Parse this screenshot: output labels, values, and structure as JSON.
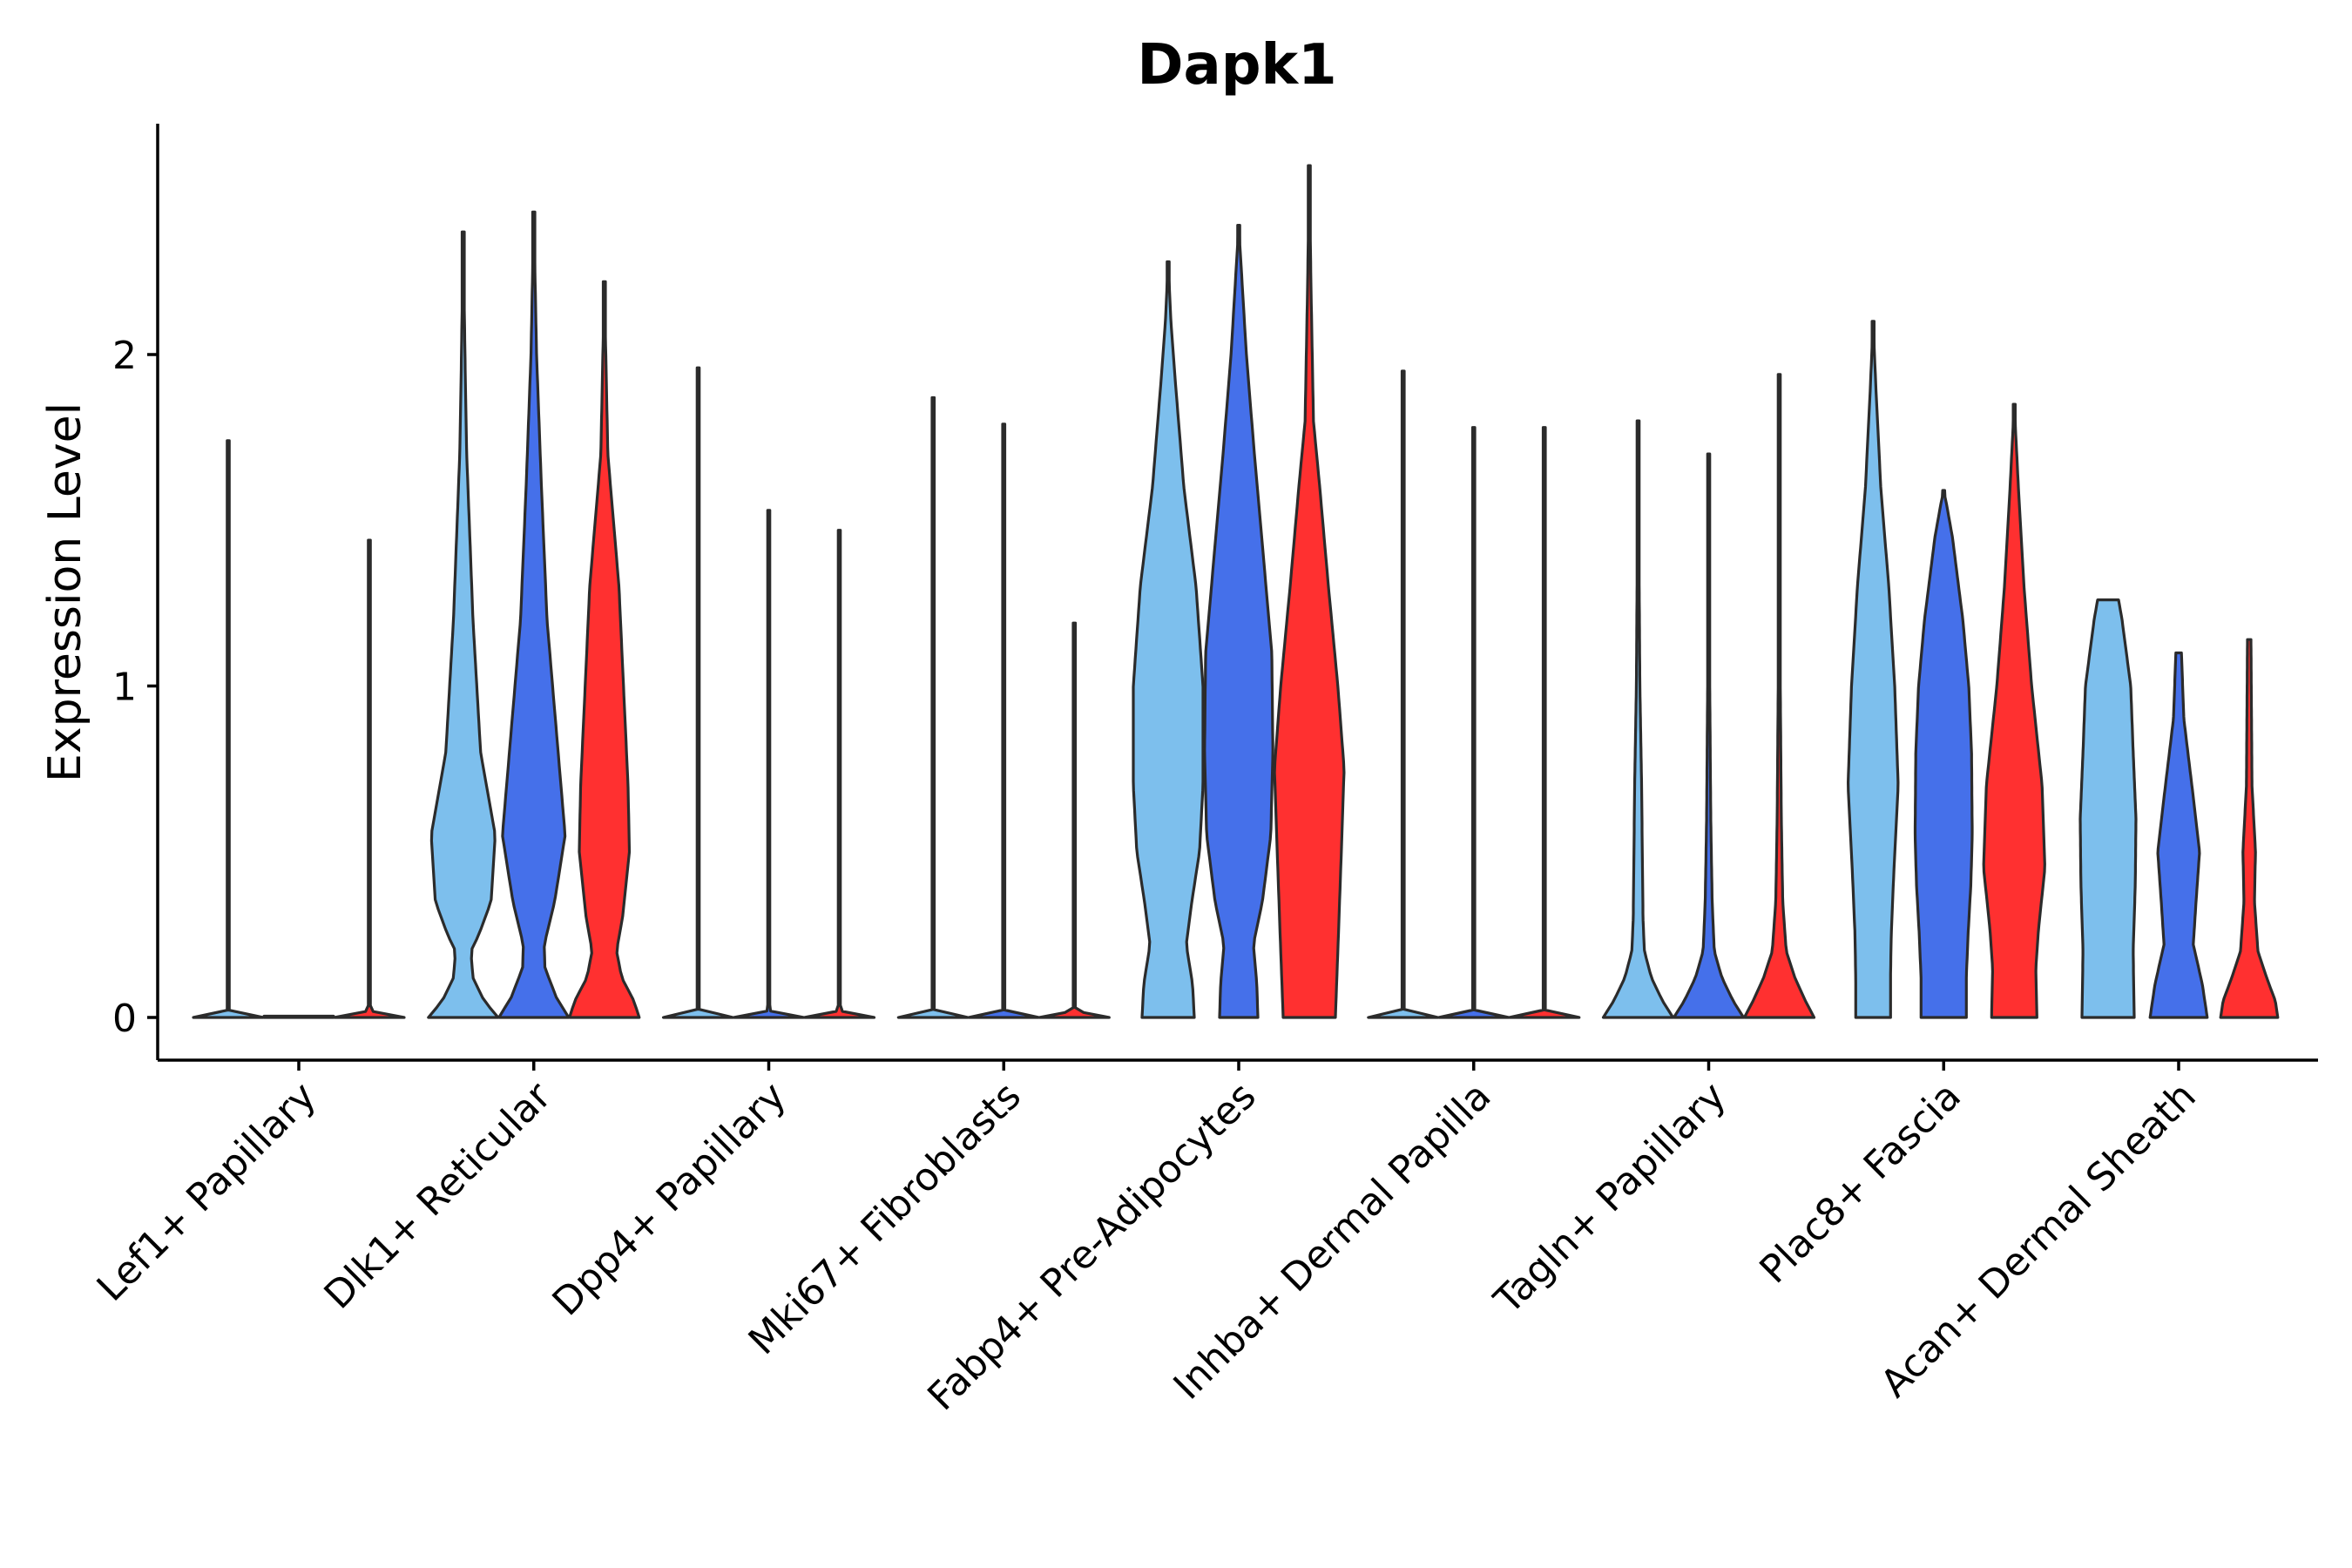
{
  "chart_data": {
    "type": "violin",
    "title": "Dapk1",
    "xlabel": "",
    "ylabel": "Expression Level",
    "ylim": [
      -0.13,
      2.7
    ],
    "yticks": [
      0,
      1,
      2
    ],
    "grid": false,
    "legend": "none",
    "group_colors": [
      "#7dbfed",
      "#4570ea",
      "#ff3030"
    ],
    "categories": [
      "Lef1+ Papillary",
      "Dlk1+ Reticular",
      "Dpp4+ Papillary",
      "Mki67+ Fibroblasts",
      "Fabp4+ Pre-Adipocytes",
      "Inhba+ Dermal Papilla",
      "Tagln+ Papillary",
      "Plac8+ Fascia",
      "Acan+ Dermal Sheath"
    ],
    "violins": [
      [
        {
          "max": 1.74,
          "profile": [
            [
              0,
              1.0
            ],
            [
              0.02,
              0.01
            ],
            [
              1,
              0
            ]
          ]
        },
        {
          "max": 0.0,
          "profile": [
            [
              0,
              1.0
            ],
            [
              1,
              0
            ]
          ]
        },
        {
          "max": 1.44,
          "profile": [
            [
              0,
              1.0
            ],
            [
              0.02,
              0.01
            ],
            [
              1,
              0
            ]
          ]
        }
      ],
      [
        {
          "max": 2.37,
          "profile": [
            [
              0,
              1.0
            ],
            [
              0.05,
              0.6
            ],
            [
              0.12,
              0.28
            ],
            [
              0.2,
              0.22
            ],
            [
              0.25,
              0.45
            ],
            [
              0.35,
              0.8
            ],
            [
              0.55,
              0.92
            ],
            [
              0.8,
              0.5
            ],
            [
              1.2,
              0.28
            ],
            [
              1.7,
              0.1
            ],
            [
              2.0,
              0.05
            ],
            [
              2.37,
              0
            ]
          ]
        },
        {
          "max": 2.43,
          "profile": [
            [
              0,
              1.0
            ],
            [
              0.06,
              0.65
            ],
            [
              0.15,
              0.32
            ],
            [
              0.22,
              0.3
            ],
            [
              0.35,
              0.6
            ],
            [
              0.55,
              0.9
            ],
            [
              0.8,
              0.7
            ],
            [
              1.2,
              0.38
            ],
            [
              1.6,
              0.22
            ],
            [
              2.0,
              0.08
            ],
            [
              2.43,
              0
            ]
          ]
        },
        {
          "max": 2.22,
          "profile": [
            [
              0,
              1.0
            ],
            [
              0.05,
              0.85
            ],
            [
              0.12,
              0.5
            ],
            [
              0.2,
              0.35
            ],
            [
              0.3,
              0.52
            ],
            [
              0.5,
              0.72
            ],
            [
              0.7,
              0.68
            ],
            [
              1.0,
              0.55
            ],
            [
              1.3,
              0.42
            ],
            [
              1.7,
              0.1
            ],
            [
              2.22,
              0
            ]
          ]
        }
      ],
      [
        {
          "max": 1.96,
          "profile": [
            [
              0,
              1.0
            ],
            [
              0.02,
              0.01
            ],
            [
              1,
              0
            ]
          ]
        },
        {
          "max": 1.53,
          "profile": [
            [
              0,
              1.0
            ],
            [
              0.02,
              0.01
            ],
            [
              1,
              0
            ]
          ]
        },
        {
          "max": 1.47,
          "profile": [
            [
              0,
              1.0
            ],
            [
              0.02,
              0.01
            ],
            [
              1,
              0
            ]
          ]
        }
      ],
      [
        {
          "max": 1.87,
          "profile": [
            [
              0,
              1.0
            ],
            [
              0.02,
              0.01
            ],
            [
              1,
              0
            ]
          ]
        },
        {
          "max": 1.79,
          "profile": [
            [
              0,
              1.0
            ],
            [
              0.02,
              0.01
            ],
            [
              1,
              0
            ]
          ]
        },
        {
          "max": 1.19,
          "profile": [
            [
              0,
              1.0
            ],
            [
              0.02,
              0.01
            ],
            [
              1,
              0
            ]
          ]
        }
      ],
      [
        {
          "max": 2.28,
          "profile": [
            [
              0,
              0.75
            ],
            [
              0.1,
              0.7
            ],
            [
              0.22,
              0.52
            ],
            [
              0.35,
              0.68
            ],
            [
              0.5,
              0.9
            ],
            [
              0.7,
              1.0
            ],
            [
              1.0,
              1.0
            ],
            [
              1.3,
              0.8
            ],
            [
              1.6,
              0.45
            ],
            [
              1.9,
              0.22
            ],
            [
              2.1,
              0.08
            ],
            [
              2.28,
              0
            ]
          ]
        },
        {
          "max": 2.39,
          "profile": [
            [
              0,
              0.55
            ],
            [
              0.1,
              0.52
            ],
            [
              0.22,
              0.42
            ],
            [
              0.35,
              0.68
            ],
            [
              0.55,
              0.92
            ],
            [
              0.8,
              0.98
            ],
            [
              1.1,
              0.95
            ],
            [
              1.4,
              0.7
            ],
            [
              1.7,
              0.45
            ],
            [
              2.0,
              0.22
            ],
            [
              2.39,
              0
            ]
          ]
        },
        {
          "max": 2.57,
          "profile": [
            [
              0,
              0.75
            ],
            [
              0.2,
              0.82
            ],
            [
              0.5,
              0.92
            ],
            [
              0.75,
              1.0
            ],
            [
              1.0,
              0.82
            ],
            [
              1.3,
              0.55
            ],
            [
              1.6,
              0.3
            ],
            [
              1.8,
              0.12
            ],
            [
              2.2,
              0.05
            ],
            [
              2.57,
              0
            ]
          ]
        }
      ],
      [
        {
          "max": 1.95,
          "profile": [
            [
              0,
              1.0
            ],
            [
              0.02,
              0.01
            ],
            [
              1,
              0
            ]
          ]
        },
        {
          "max": 1.78,
          "profile": [
            [
              0,
              1.0
            ],
            [
              0.02,
              0.01
            ],
            [
              1,
              0
            ]
          ]
        },
        {
          "max": 1.78,
          "profile": [
            [
              0,
              1.0
            ],
            [
              0.02,
              0.01
            ],
            [
              1,
              0
            ]
          ]
        }
      ],
      [
        {
          "max": 1.8,
          "profile": [
            [
              0,
              1.0
            ],
            [
              0.05,
              0.7
            ],
            [
              0.12,
              0.38
            ],
            [
              0.2,
              0.18
            ],
            [
              0.3,
              0.14
            ],
            [
              0.5,
              0.12
            ],
            [
              0.7,
              0.1
            ],
            [
              1.0,
              0.05
            ],
            [
              1.8,
              0
            ]
          ]
        },
        {
          "max": 1.7,
          "profile": [
            [
              0,
              1.0
            ],
            [
              0.05,
              0.7
            ],
            [
              0.12,
              0.38
            ],
            [
              0.2,
              0.16
            ],
            [
              0.35,
              0.1
            ],
            [
              0.6,
              0.06
            ],
            [
              1.0,
              0.03
            ],
            [
              1.7,
              0
            ]
          ]
        },
        {
          "max": 1.94,
          "profile": [
            [
              0,
              1.0
            ],
            [
              0.05,
              0.75
            ],
            [
              0.12,
              0.45
            ],
            [
              0.2,
              0.2
            ],
            [
              0.35,
              0.1
            ],
            [
              0.6,
              0.06
            ],
            [
              1.0,
              0.03
            ],
            [
              1.94,
              0
            ]
          ]
        }
      ],
      [
        {
          "max": 2.1,
          "profile": [
            [
              0,
              0.5
            ],
            [
              0.12,
              0.5
            ],
            [
              0.25,
              0.52
            ],
            [
              0.45,
              0.6
            ],
            [
              0.7,
              0.72
            ],
            [
              1.0,
              0.62
            ],
            [
              1.3,
              0.45
            ],
            [
              1.6,
              0.22
            ],
            [
              1.9,
              0.08
            ],
            [
              2.1,
              0
            ]
          ]
        },
        {
          "max": 1.59,
          "profile": [
            [
              0,
              0.65
            ],
            [
              0.12,
              0.65
            ],
            [
              0.25,
              0.7
            ],
            [
              0.4,
              0.78
            ],
            [
              0.55,
              0.82
            ],
            [
              0.8,
              0.8
            ],
            [
              1.0,
              0.72
            ],
            [
              1.2,
              0.55
            ],
            [
              1.45,
              0.25
            ],
            [
              1.55,
              0.08
            ],
            [
              1.59,
              0
            ]
          ]
        },
        {
          "max": 1.85,
          "profile": [
            [
              0,
              0.65
            ],
            [
              0.15,
              0.62
            ],
            [
              0.27,
              0.7
            ],
            [
              0.45,
              0.88
            ],
            [
              0.7,
              0.8
            ],
            [
              1.0,
              0.5
            ],
            [
              1.3,
              0.28
            ],
            [
              1.6,
              0.12
            ],
            [
              1.85,
              0
            ]
          ]
        }
      ],
      [
        {
          "max": 1.26,
          "profile": [
            [
              0,
              0.75
            ],
            [
              0.2,
              0.72
            ],
            [
              0.4,
              0.78
            ],
            [
              0.6,
              0.8
            ],
            [
              0.8,
              0.72
            ],
            [
              1.0,
              0.65
            ],
            [
              1.2,
              0.4
            ],
            [
              1.26,
              0.3
            ]
          ]
        },
        {
          "max": 1.1,
          "profile": [
            [
              0,
              0.82
            ],
            [
              0.1,
              0.68
            ],
            [
              0.22,
              0.42
            ],
            [
              0.35,
              0.5
            ],
            [
              0.5,
              0.6
            ],
            [
              0.7,
              0.38
            ],
            [
              0.9,
              0.15
            ],
            [
              1.1,
              0.08
            ]
          ]
        },
        {
          "max": 1.14,
          "profile": [
            [
              0,
              0.82
            ],
            [
              0.05,
              0.75
            ],
            [
              0.12,
              0.5
            ],
            [
              0.2,
              0.25
            ],
            [
              0.35,
              0.15
            ],
            [
              0.5,
              0.18
            ],
            [
              0.7,
              0.08
            ],
            [
              1.14,
              0.05
            ]
          ]
        }
      ]
    ]
  }
}
